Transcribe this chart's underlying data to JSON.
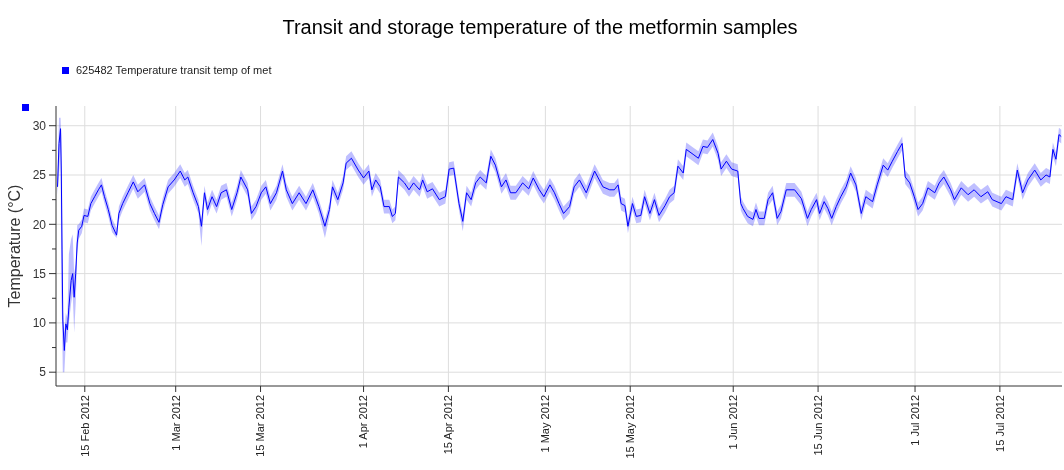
{
  "chart_data": {
    "type": "line",
    "title": "Transit and storage temperature of the metformin samples",
    "ylabel": "Temperature (°C)",
    "legend": "top left",
    "grid": true,
    "xlim": [
      "2012-02-10T06:00",
      "2012-07-25T06:00"
    ],
    "xticks": [
      {
        "value": "2012-02-15",
        "label": "15 Feb 2012"
      },
      {
        "value": "2012-03-01",
        "label": "1 Mar 2012"
      },
      {
        "value": "2012-03-15",
        "label": "15 Mar 2012"
      },
      {
        "value": "2012-04-01",
        "label": "1 Apr 2012"
      },
      {
        "value": "2012-04-15",
        "label": "15 Apr 2012"
      },
      {
        "value": "2012-05-01",
        "label": "1 May 2012"
      },
      {
        "value": "2012-05-15",
        "label": "15 May 2012"
      },
      {
        "value": "2012-06-01",
        "label": "1 Jun 2012"
      },
      {
        "value": "2012-06-15",
        "label": "15 Jun 2012"
      },
      {
        "value": "2012-07-01",
        "label": "1 Jul 2012"
      },
      {
        "value": "2012-07-15",
        "label": "15 Jul 2012"
      }
    ],
    "ylim": [
      3.6,
      32
    ],
    "yticks": [
      5,
      {
        "value": 7.5,
        "label": null
      },
      10,
      {
        "value": 12.5,
        "label": null
      },
      15,
      {
        "value": 17.5,
        "label": null
      },
      20,
      {
        "value": 22.5,
        "label": null
      },
      25,
      {
        "value": 27.5,
        "label": null
      },
      30
    ],
    "series": [
      {
        "name": "625482  Temperature transit temp of met",
        "color": "#0000ff",
        "x": [
          "2012-02-10T12:00",
          "2012-02-10T18:00",
          "2012-02-11T00:00",
          "2012-02-11T03:00",
          "2012-02-11T06:00",
          "2012-02-11T09:00",
          "2012-02-11T15:00",
          "2012-02-11T21:00",
          "2012-02-12T03:00",
          "2012-02-12T09:00",
          "2012-02-12T18:00",
          "2012-02-13T00:00",
          "2012-02-13T06:00",
          "2012-02-13T12:00",
          "2012-02-13T18:00",
          "2012-02-14T00:00",
          "2012-02-14T12:00",
          "2012-02-14T21:00",
          "2012-02-15T12:00",
          "2012-02-16T00:00",
          "2012-02-16T15:00",
          "2012-02-17T06:00",
          "2012-02-17T18:00",
          "2012-02-18T06:00",
          "2012-02-18T21:00",
          "2012-02-19T12:00",
          "2012-02-20T06:00",
          "2012-02-20T15:00",
          "2012-02-21T06:00",
          "2012-02-22T03:00",
          "2012-02-23T00:00",
          "2012-02-23T18:00",
          "2012-02-24T21:00",
          "2012-02-25T18:00",
          "2012-02-26T12:00",
          "2012-02-27T06:00",
          "2012-02-27T21:00",
          "2012-02-28T18:00",
          "2012-02-29T18:00",
          "2012-03-01T18:00",
          "2012-03-02T12:00",
          "2012-03-03T00:00",
          "2012-03-03T21:00",
          "2012-03-04T18:00",
          "2012-03-05T06:00",
          "2012-03-05T18:00",
          "2012-03-06T06:00",
          "2012-03-07T00:00",
          "2012-03-07T18:00",
          "2012-03-08T12:00",
          "2012-03-09T09:00",
          "2012-03-10T06:00",
          "2012-03-11T03:00",
          "2012-03-11T18:00",
          "2012-03-12T21:00",
          "2012-03-13T12:00",
          "2012-03-14T06:00",
          "2012-03-15T03:00",
          "2012-03-15T21:00",
          "2012-03-16T15:00",
          "2012-03-17T15:00",
          "2012-03-18T15:00",
          "2012-03-19T06:00",
          "2012-03-20T06:00",
          "2012-03-21T09:00",
          "2012-03-22T12:00",
          "2012-03-23T15:00",
          "2012-03-24T15:00",
          "2012-03-25T15:00",
          "2012-03-26T09:00",
          "2012-03-26T21:00",
          "2012-03-27T18:00",
          "2012-03-28T15:00",
          "2012-03-29T03:00",
          "2012-03-30T00:00",
          "2012-03-31T03:00",
          "2012-04-01T00:00",
          "2012-04-01T21:00",
          "2012-04-02T09:00",
          "2012-04-03T00:00",
          "2012-04-03T18:00",
          "2012-04-04T09:00",
          "2012-04-05T06:00",
          "2012-04-05T18:00",
          "2012-04-06T06:00",
          "2012-04-06T18:00",
          "2012-04-07T18:00",
          "2012-04-08T12:00",
          "2012-04-09T06:00",
          "2012-04-10T06:00",
          "2012-04-10T18:00",
          "2012-04-11T12:00",
          "2012-04-12T09:00",
          "2012-04-13T12:00",
          "2012-04-14T12:00",
          "2012-04-15T03:00",
          "2012-04-15T21:00",
          "2012-04-16T18:00",
          "2012-04-17T09:00",
          "2012-04-18T00:00",
          "2012-04-18T18:00",
          "2012-04-19T12:00",
          "2012-04-20T06:00",
          "2012-04-21T06:00",
          "2012-04-22T00:00",
          "2012-04-22T18:00",
          "2012-04-23T18:00",
          "2012-04-24T12:00",
          "2012-04-25T06:00",
          "2012-04-26T03:00",
          "2012-04-27T06:00",
          "2012-04-28T06:00",
          "2012-04-29T00:00",
          "2012-04-30T00:00",
          "2012-04-30T18:00",
          "2012-05-01T18:00",
          "2012-05-02T12:00",
          "2012-05-03T06:00",
          "2012-05-04T00:00",
          "2012-05-05T00:00",
          "2012-05-05T18:00",
          "2012-05-06T15:00",
          "2012-05-07T18:00",
          "2012-05-09T03:00",
          "2012-05-10T12:00",
          "2012-05-11T15:00",
          "2012-05-12T09:00",
          "2012-05-13T00:00",
          "2012-05-13T12:00",
          "2012-05-14T03:00",
          "2012-05-14T15:00",
          "2012-05-15T09:00",
          "2012-05-16T00:00",
          "2012-05-16T18:00",
          "2012-05-17T09:00",
          "2012-05-18T06:00",
          "2012-05-19T00:00",
          "2012-05-19T18:00",
          "2012-05-20T18:00",
          "2012-05-21T12:00",
          "2012-05-22T06:00",
          "2012-05-22T21:00",
          "2012-05-23T18:00",
          "2012-05-24T06:00",
          "2012-05-25T09:00",
          "2012-05-26T06:00",
          "2012-05-27T00:00",
          "2012-05-27T18:00",
          "2012-05-28T15:00",
          "2012-05-29T12:00",
          "2012-05-30T00:00",
          "2012-05-30T21:00",
          "2012-05-31T18:00",
          "2012-06-01T18:00",
          "2012-06-02T06:00",
          "2012-06-02T15:00",
          "2012-06-03T09:00",
          "2012-06-04T06:00",
          "2012-06-04T18:00",
          "2012-06-05T06:00",
          "2012-06-06T03:00",
          "2012-06-06T18:00",
          "2012-06-07T12:00",
          "2012-06-08T06:00",
          "2012-06-08T21:00",
          "2012-06-09T18:00",
          "2012-06-11T03:00",
          "2012-06-12T06:00",
          "2012-06-13T06:00",
          "2012-06-13T21:00",
          "2012-06-14T18:00",
          "2012-06-15T06:00",
          "2012-06-16T00:00",
          "2012-06-16T15:00",
          "2012-06-17T06:00",
          "2012-06-18T00:00",
          "2012-06-18T18:00",
          "2012-06-19T15:00",
          "2012-06-20T09:00",
          "2012-06-21T06:00",
          "2012-06-22T03:00",
          "2012-06-22T21:00",
          "2012-06-24T00:00",
          "2012-06-24T18:00",
          "2012-06-25T18:00",
          "2012-06-26T12:00",
          "2012-06-27T06:00",
          "2012-06-28T03:00",
          "2012-06-28T21:00",
          "2012-06-29T09:00",
          "2012-06-30T03:00",
          "2012-06-30T21:00",
          "2012-07-01T12:00",
          "2012-07-02T06:00",
          "2012-07-03T03:00",
          "2012-07-04T06:00",
          "2012-07-05T00:00",
          "2012-07-05T18:00",
          "2012-07-06T21:00",
          "2012-07-07T12:00",
          "2012-07-08T15:00",
          "2012-07-09T18:00",
          "2012-07-10T18:00",
          "2012-07-11T21:00",
          "2012-07-13T00:00",
          "2012-07-13T18:00",
          "2012-07-15T06:00",
          "2012-07-16T00:00",
          "2012-07-17T03:00",
          "2012-07-17T21:00",
          "2012-07-18T18:00",
          "2012-07-19T15:00",
          "2012-07-20T18:00",
          "2012-07-21T18:00",
          "2012-07-22T15:00",
          "2012-07-23T06:00",
          "2012-07-23T18:00",
          "2012-07-24T06:00",
          "2012-07-24T18:00",
          "2012-07-25T03:00"
        ],
        "values": [
          23.8,
          28.2,
          29.7,
          25.2,
          17.4,
          10.3,
          7.2,
          9.9,
          9.3,
          11.6,
          14.3,
          15,
          12.6,
          15,
          18.1,
          19.4,
          19.8,
          20.9,
          20.8,
          22.1,
          22.8,
          23.5,
          24,
          22.8,
          21.5,
          19.9,
          18.9,
          21.1,
          22.1,
          23.2,
          24.3,
          23.3,
          24,
          22.1,
          21.1,
          20.2,
          22,
          23.8,
          24.5,
          25.4,
          24.5,
          24.8,
          23.2,
          21.8,
          19.8,
          23.2,
          21.5,
          22.8,
          21.8,
          23.2,
          23.5,
          21.5,
          23.2,
          24.8,
          23.5,
          21.1,
          21.8,
          23.2,
          23.8,
          22.1,
          23.2,
          25.4,
          23.5,
          22.1,
          23.2,
          22.1,
          23.5,
          21.8,
          19.8,
          21.5,
          23.8,
          22.5,
          24.2,
          26.2,
          26.7,
          25.5,
          24.7,
          25.4,
          23.5,
          24.5,
          23.8,
          21.8,
          21.8,
          20.8,
          21.1,
          24.8,
          24.2,
          23.5,
          24.2,
          23.5,
          24.5,
          23.3,
          23.6,
          22.5,
          22.8,
          25.6,
          25.7,
          22.1,
          20.3,
          23.2,
          22.5,
          24.2,
          24.8,
          24.2,
          26.9,
          26,
          23.8,
          24.5,
          23.2,
          23.2,
          24.2,
          23.6,
          24.7,
          23.5,
          22.8,
          24,
          23.2,
          22.1,
          21.1,
          21.8,
          23.8,
          24.5,
          23.2,
          25.4,
          23.8,
          23.5,
          23.5,
          24,
          22.1,
          21.9,
          19.8,
          22.1,
          20.8,
          20.9,
          22.8,
          21.1,
          22.5,
          20.9,
          21.9,
          22.8,
          23.2,
          25.9,
          25.2,
          27.6,
          27.1,
          26.7,
          27.9,
          27.8,
          28.6,
          27.2,
          25.6,
          26.4,
          25.6,
          25.4,
          22.1,
          21.6,
          20.8,
          20.5,
          21.5,
          20.6,
          20.6,
          22.5,
          23.2,
          20.6,
          21.3,
          23.5,
          23.5,
          22.6,
          20.6,
          21.5,
          22.5,
          21.1,
          22.3,
          21.6,
          20.6,
          21.8,
          22.8,
          23.8,
          25.2,
          24,
          21.1,
          22.8,
          22.3,
          24,
          26,
          25.5,
          26.4,
          27.4,
          28.2,
          24.8,
          24.2,
          22.8,
          21.5,
          22.1,
          23.7,
          23.2,
          24.2,
          24.8,
          23.5,
          22.5,
          23.7,
          23,
          23.5,
          22.8,
          23.3,
          22.5,
          22.1,
          22.8,
          22.5,
          25.5,
          23.2,
          24.5,
          25.5,
          24.5,
          25,
          24.8,
          27.6,
          26.6,
          29.1,
          28.9
        ],
        "lower": [
          23,
          25,
          28,
          13,
          10,
          5,
          5,
          8,
          8,
          10,
          12,
          13,
          9,
          12,
          17,
          18.5,
          19.1,
          20.2,
          20.1,
          21.4,
          22.1,
          22.8,
          23.3,
          22.1,
          20.8,
          19.2,
          18.6,
          20.4,
          21.4,
          22.5,
          23.6,
          22.6,
          23.3,
          21.4,
          20.4,
          19.5,
          21.3,
          23.1,
          23.8,
          24.7,
          23.8,
          24.1,
          22.5,
          21.1,
          17.8,
          22.5,
          20.8,
          22.1,
          21.1,
          22.5,
          22.8,
          20.8,
          22.5,
          24.1,
          22.8,
          20.4,
          21.1,
          22.5,
          23.1,
          21.4,
          22.5,
          24.7,
          22.8,
          21.4,
          22.5,
          21.4,
          22.8,
          21.1,
          18.6,
          20.8,
          23.1,
          21.8,
          23.5,
          25.5,
          26,
          24.8,
          24,
          24.7,
          22.8,
          23.8,
          23.1,
          21.1,
          21.1,
          20.1,
          20.4,
          24.1,
          23.5,
          22.8,
          23.5,
          22.8,
          23.8,
          22.6,
          22.9,
          21.8,
          22.1,
          24.9,
          25,
          21.4,
          19.3,
          22.5,
          21.8,
          23.5,
          24.1,
          23.5,
          26.2,
          25.3,
          23.1,
          23.8,
          22.5,
          22.5,
          23.5,
          22.9,
          24,
          22.8,
          22.1,
          23.3,
          22.5,
          21.4,
          20.4,
          21.1,
          23.1,
          23.8,
          22.5,
          24.7,
          23.1,
          22.8,
          22.8,
          23.3,
          21.4,
          21.2,
          19.1,
          21.4,
          20.1,
          20.2,
          22.1,
          20.4,
          21.8,
          20.2,
          21.2,
          22.1,
          22.5,
          25.2,
          24.5,
          26.9,
          26.4,
          26,
          27.2,
          27.1,
          27.9,
          26.5,
          24.9,
          25.7,
          24.9,
          24.7,
          21.4,
          20.9,
          20.1,
          19.8,
          20.8,
          19.9,
          19.9,
          21.8,
          22.5,
          19.9,
          20.6,
          22.8,
          22.8,
          21.9,
          19.8,
          20.8,
          21.8,
          20.4,
          21.6,
          20.9,
          19.9,
          21.1,
          22.1,
          23.1,
          24.5,
          23.3,
          20.4,
          22.1,
          21.6,
          23.3,
          25.3,
          24.8,
          25.7,
          26.7,
          27.5,
          24.1,
          23.5,
          22.1,
          20.8,
          21.4,
          23,
          22.5,
          23.5,
          24.1,
          22.8,
          21.8,
          23,
          22.3,
          22.8,
          22.1,
          22.6,
          21.8,
          21.4,
          22.1,
          21.8,
          24.8,
          22.5,
          23.8,
          24.8,
          23.8,
          24.3,
          24.1,
          26.9,
          25.9,
          28.4,
          28.2
        ],
        "upper": [
          25,
          30.8,
          30.8,
          29,
          25,
          11.5,
          9,
          11,
          10.5,
          17,
          18.5,
          19,
          15,
          16,
          19.9,
          20,
          20.5,
          21.6,
          21.5,
          22.8,
          23.5,
          24.2,
          24.7,
          23.5,
          22.2,
          20.6,
          19.6,
          21.8,
          22.8,
          23.9,
          25,
          24,
          24.7,
          22.8,
          21.8,
          20.9,
          22.7,
          24.5,
          25.2,
          26.1,
          25.2,
          25.5,
          23.9,
          22.5,
          20.5,
          23.9,
          22.2,
          23.5,
          22.5,
          23.9,
          24.2,
          22.2,
          23.9,
          25.5,
          24.2,
          21.8,
          22.5,
          23.9,
          24.5,
          22.8,
          23.9,
          26.1,
          24.2,
          22.8,
          23.9,
          22.8,
          24.2,
          22.5,
          20.5,
          22.2,
          24.5,
          23.2,
          24.9,
          26.9,
          27.4,
          26.2,
          25.4,
          26.1,
          24.2,
          25.2,
          24.5,
          22.5,
          22.5,
          21.5,
          21.8,
          25.5,
          24.9,
          24.2,
          24.9,
          24.2,
          25.2,
          24,
          24.3,
          23.2,
          23.5,
          26.3,
          26.4,
          22.8,
          21,
          23.9,
          23.2,
          24.9,
          25.5,
          24.9,
          27.6,
          26.7,
          24.5,
          25.2,
          23.9,
          23.9,
          24.9,
          24.3,
          25.4,
          24.2,
          23.5,
          24.7,
          23.9,
          22.8,
          21.8,
          22.5,
          24.5,
          25.2,
          23.9,
          26.1,
          24.5,
          24.2,
          24.2,
          24.7,
          22.8,
          22.6,
          20.5,
          22.8,
          21.5,
          21.6,
          23.5,
          21.8,
          23.2,
          21.6,
          22.6,
          23.5,
          23.9,
          26.6,
          25.9,
          28.3,
          27.8,
          27.4,
          28.6,
          28.5,
          29.3,
          27.9,
          26.3,
          27.1,
          26.3,
          26.1,
          22.8,
          22.3,
          21.5,
          21.2,
          22.2,
          21.3,
          21.3,
          23.2,
          23.9,
          21.3,
          22,
          24.2,
          24.2,
          23.3,
          21.3,
          22.2,
          23.2,
          21.8,
          23,
          22.3,
          21.3,
          22.5,
          23.5,
          24.5,
          25.9,
          24.7,
          21.8,
          23.5,
          23,
          24.7,
          26.7,
          26.2,
          27.1,
          28.1,
          28.9,
          25.5,
          24.9,
          23.5,
          22.2,
          22.8,
          24.4,
          23.9,
          24.9,
          25.5,
          24.2,
          23.2,
          24.4,
          23.7,
          24.2,
          23.5,
          24,
          23.2,
          22.8,
          23.5,
          23.2,
          26.2,
          23.9,
          25.2,
          26.2,
          25.2,
          25.7,
          25.5,
          28.3,
          27.3,
          29.8,
          29.6
        ]
      }
    ]
  }
}
